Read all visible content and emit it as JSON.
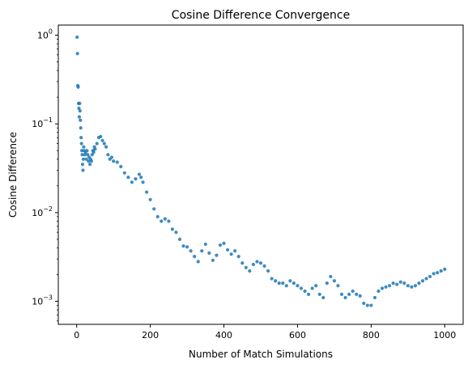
{
  "chart_data": {
    "type": "scatter",
    "title": "Cosine Difference Convergence",
    "xlabel": "Number of Match Simulations",
    "ylabel": "Cosine Difference",
    "xlim": [
      -50,
      1050
    ],
    "ylim": [
      0.00055,
      1.3
    ],
    "yscale": "log",
    "xticks": [
      0,
      200,
      400,
      600,
      800,
      1000
    ],
    "xtick_labels": [
      "0",
      "200",
      "400",
      "600",
      "800",
      "1000"
    ],
    "yticks": [
      1,
      0.1,
      0.01,
      0.001
    ],
    "ytick_labels": [
      {
        "base": "10",
        "exp": "0"
      },
      {
        "base": "10",
        "exp": "−1"
      },
      {
        "base": "10",
        "exp": "−2"
      },
      {
        "base": "10",
        "exp": "−3"
      }
    ],
    "grid": false,
    "marker_color": "#1f77b4",
    "series": [
      {
        "x": [
          1,
          2,
          3,
          4,
          5,
          6,
          7,
          8,
          9,
          10,
          11,
          12,
          13,
          14,
          15,
          16,
          17,
          18,
          19,
          20,
          22,
          24,
          26,
          28,
          30,
          32,
          34,
          36,
          38,
          40,
          42,
          44,
          46,
          48,
          50,
          55,
          60,
          65,
          70,
          75,
          80,
          85,
          90,
          95,
          100,
          110,
          120,
          130,
          140,
          150,
          160,
          170,
          175,
          180,
          190,
          200,
          210,
          220,
          230,
          240,
          250,
          260,
          270,
          280,
          290,
          300,
          310,
          320,
          330,
          340,
          350,
          360,
          370,
          380,
          390,
          400,
          410,
          420,
          430,
          440,
          450,
          460,
          470,
          480,
          490,
          500,
          510,
          520,
          530,
          540,
          550,
          560,
          570,
          580,
          590,
          600,
          610,
          620,
          630,
          640,
          650,
          660,
          670,
          680,
          690,
          700,
          710,
          720,
          730,
          740,
          750,
          760,
          770,
          780,
          790,
          800,
          810,
          820,
          830,
          840,
          850,
          860,
          870,
          880,
          890,
          900,
          910,
          920,
          930,
          940,
          950,
          960,
          970,
          980,
          990,
          1000
        ],
        "y": [
          0.95,
          0.62,
          0.27,
          0.26,
          0.17,
          0.15,
          0.12,
          0.17,
          0.14,
          0.11,
          0.09,
          0.07,
          0.06,
          0.05,
          0.045,
          0.035,
          0.03,
          0.04,
          0.055,
          0.05,
          0.045,
          0.048,
          0.04,
          0.05,
          0.045,
          0.038,
          0.042,
          0.035,
          0.04,
          0.038,
          0.045,
          0.05,
          0.048,
          0.055,
          0.052,
          0.06,
          0.07,
          0.072,
          0.065,
          0.06,
          0.055,
          0.045,
          0.04,
          0.042,
          0.038,
          0.037,
          0.033,
          0.028,
          0.025,
          0.022,
          0.024,
          0.027,
          0.025,
          0.022,
          0.017,
          0.014,
          0.011,
          0.009,
          0.008,
          0.0085,
          0.008,
          0.0065,
          0.006,
          0.005,
          0.0042,
          0.0041,
          0.0037,
          0.0032,
          0.0028,
          0.0037,
          0.0044,
          0.0035,
          0.0029,
          0.0033,
          0.0043,
          0.0045,
          0.0038,
          0.0034,
          0.0037,
          0.0032,
          0.0027,
          0.0024,
          0.0022,
          0.0026,
          0.0028,
          0.0027,
          0.0025,
          0.0022,
          0.0018,
          0.0017,
          0.0016,
          0.0016,
          0.0015,
          0.0017,
          0.0016,
          0.0015,
          0.0014,
          0.0013,
          0.0012,
          0.0014,
          0.0015,
          0.0012,
          0.0011,
          0.0016,
          0.0019,
          0.0017,
          0.0015,
          0.0012,
          0.0011,
          0.0012,
          0.0013,
          0.0012,
          0.00115,
          0.00095,
          0.0009,
          0.0009,
          0.0011,
          0.0013,
          0.0014,
          0.00145,
          0.0015,
          0.0016,
          0.00155,
          0.00165,
          0.0016,
          0.0015,
          0.00145,
          0.0015,
          0.0016,
          0.0017,
          0.0018,
          0.0019,
          0.00205,
          0.0021,
          0.0022,
          0.0023
        ]
      }
    ]
  }
}
